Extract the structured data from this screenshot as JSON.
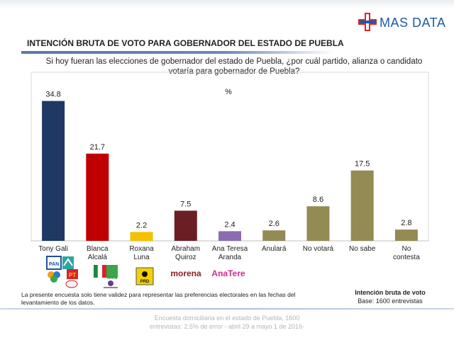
{
  "brand": {
    "name": "MAS DATA"
  },
  "title": "INTENCIÓN BRUTA DE VOTO PARA GOBERNADOR DEL ESTADO DE PUEBLA",
  "question_line1": "Si hoy fueran las elecciones de gobernador del estado de Puebla, ¿por cuál partido, alianza o candidato",
  "question_line2": "votaría para gobernador de Puebla?",
  "note_line1": "La presente encuesta solo tiene validez para representar las preferencias electorales en las fechas del",
  "note_line2": "levantamiento de los datos.",
  "legend_title": "Intención bruta de voto",
  "legend_base": "Base: 1600 entrevistas",
  "footer_line1": "Encuesta domiciliaria en el estado de Puebla, 1600",
  "footer_line2": "entrevistas: 2.5% de error - abril 29 a mayo 1 de 2016-",
  "party_labels": {
    "pan": "PAN",
    "pt": "PT",
    "prd": "PRD",
    "verde": "VERDE",
    "morena": "morena",
    "andtere": "AnaTere"
  },
  "chart_data": {
    "type": "bar",
    "title": "%",
    "categories": [
      [
        "Tony Gali"
      ],
      [
        "Blanca",
        "Alcalá"
      ],
      [
        "Roxana",
        "Luna"
      ],
      [
        "Abraham",
        "Quiroz"
      ],
      [
        "Ana Teresa",
        "Aranda"
      ],
      [
        "Anulará"
      ],
      [
        "No votará"
      ],
      [
        "No sabe"
      ],
      [
        "No",
        "contesta"
      ]
    ],
    "values": [
      34.8,
      21.7,
      2.2,
      7.5,
      2.4,
      2.6,
      8.6,
      17.5,
      2.8
    ],
    "value_labels": [
      "34.8",
      "21.7",
      "2.2",
      "7.5",
      "2.4",
      "2.6",
      "8.6",
      "17.5",
      "2.8"
    ],
    "colors": [
      "#1f3864",
      "#c00000",
      "#f5c000",
      "#6b1f24",
      "#8c6bb1",
      "#948a54",
      "#948a54",
      "#948a54",
      "#948a54"
    ],
    "ylim": [
      0,
      40
    ]
  }
}
